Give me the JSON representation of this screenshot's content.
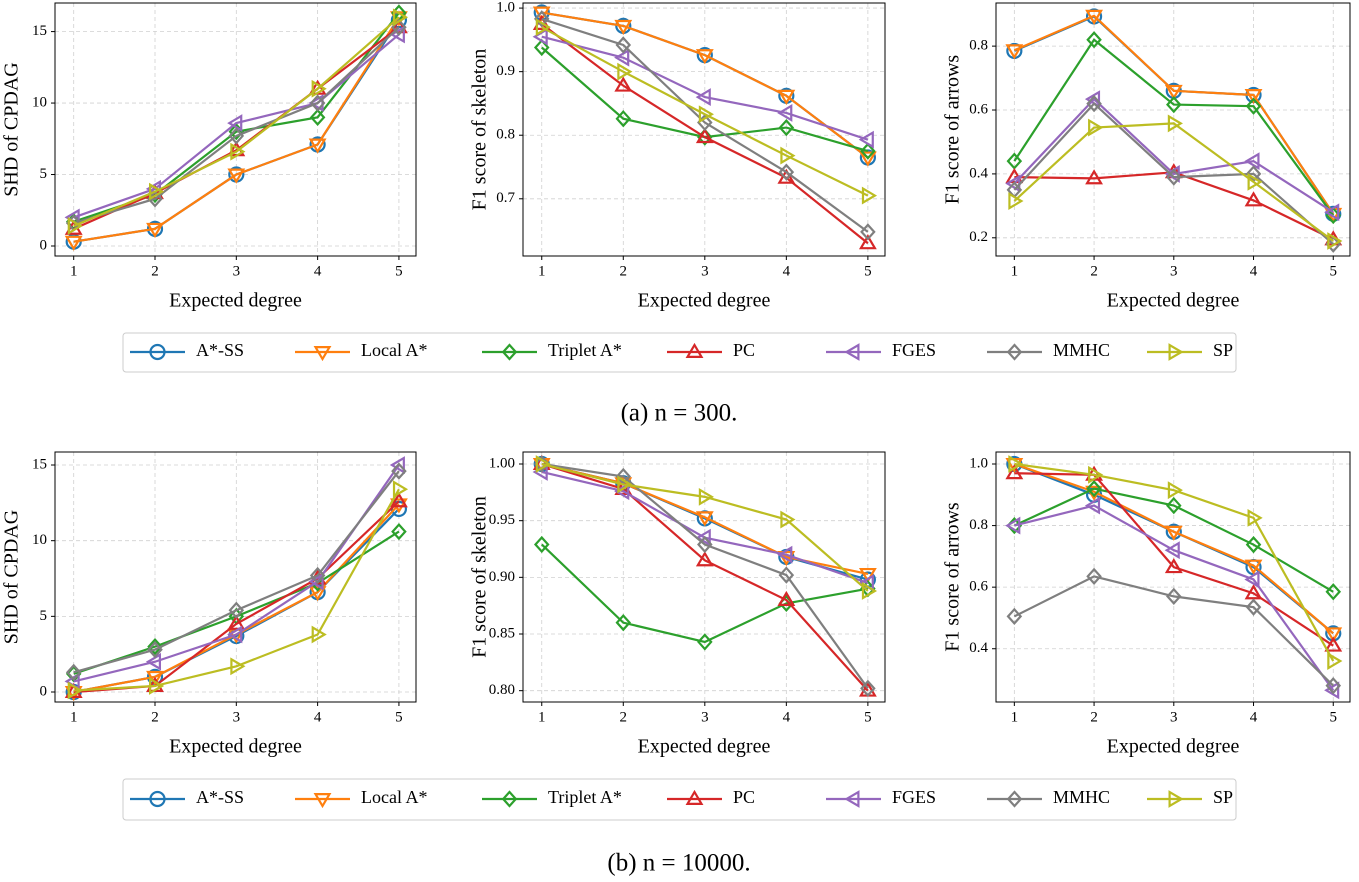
{
  "captions": [
    "(a) n = 300.",
    "(b) n = 10000."
  ],
  "chart_data": [
    {
      "type": "line",
      "xlabel": "Expected degree",
      "ylabel": "SHD of CPDAG",
      "x": [
        1,
        2,
        3,
        4,
        5
      ],
      "xlim": [
        0.77,
        5.21
      ],
      "xticks": [
        1,
        2,
        3,
        4,
        5
      ],
      "ylim": [
        -0.7,
        17.0
      ],
      "yticks": [
        0,
        5,
        10,
        15
      ],
      "grid": true,
      "series": [
        {
          "name": "A*-SS",
          "color": "#1f77b4",
          "marker": "o",
          "values": [
            0.3,
            1.2,
            5,
            7.1,
            15.8
          ]
        },
        {
          "name": "Local A*",
          "color": "#ff7f0e",
          "marker": "v",
          "values": [
            0.3,
            1.2,
            5,
            7.1,
            16
          ]
        },
        {
          "name": "Triplet A*",
          "color": "#2ca02c",
          "marker": "D",
          "values": [
            1.7,
            3.6,
            8,
            9,
            16.3
          ]
        },
        {
          "name": "PC",
          "color": "#d62728",
          "marker": "^",
          "values": [
            1.2,
            3.7,
            6.7,
            11,
            15.3
          ]
        },
        {
          "name": "FGES",
          "color": "#9467bd",
          "marker": "<",
          "values": [
            2,
            4,
            8.6,
            10,
            14.8
          ]
        },
        {
          "name": "MMHC",
          "color": "#7f7f7f",
          "marker": "D",
          "values": [
            1.6,
            3.3,
            7.7,
            10,
            15.3
          ]
        },
        {
          "name": "SP",
          "color": "#bcbd22",
          "marker": ">",
          "values": [
            1.4,
            3.8,
            6.6,
            11,
            16
          ]
        }
      ]
    },
    {
      "type": "line",
      "xlabel": "Expected degree",
      "ylabel": "F1 score of skeleton",
      "x": [
        1,
        2,
        3,
        4,
        5
      ],
      "xlim": [
        0.77,
        5.21
      ],
      "xticks": [
        1,
        2,
        3,
        4,
        5
      ],
      "ylim": [
        0.61,
        1.008
      ],
      "yticks": [
        0.7,
        0.8,
        0.9,
        {
          "value": 1,
          "label": "1.0"
        }
      ],
      "grid": true,
      "series": [
        {
          "name": "A*-SS",
          "color": "#1f77b4",
          "marker": "o",
          "values": [
            0.993,
            0.972,
            0.926,
            0.862,
            0.765
          ]
        },
        {
          "name": "Local A*",
          "color": "#ff7f0e",
          "marker": "v",
          "values": [
            0.993,
            0.972,
            0.926,
            0.862,
            0.765
          ]
        },
        {
          "name": "Triplet A*",
          "color": "#2ca02c",
          "marker": "D",
          "values": [
            0.938,
            0.826,
            0.797,
            0.812,
            0.775
          ]
        },
        {
          "name": "PC",
          "color": "#d62728",
          "marker": "^",
          "values": [
            0.975,
            0.878,
            0.797,
            0.733,
            0.63
          ]
        },
        {
          "name": "FGES",
          "color": "#9467bd",
          "marker": "<",
          "values": [
            0.955,
            0.922,
            0.86,
            0.835,
            0.793
          ]
        },
        {
          "name": "MMHC",
          "color": "#7f7f7f",
          "marker": "D",
          "values": [
            0.983,
            0.942,
            0.82,
            0.742,
            0.648
          ]
        },
        {
          "name": "SP",
          "color": "#bcbd22",
          "marker": ">",
          "values": [
            0.97,
            0.9,
            0.833,
            0.768,
            0.705
          ]
        }
      ]
    },
    {
      "type": "line",
      "xlabel": "Expected degree",
      "ylabel": "F1 score of arrows",
      "x": [
        1,
        2,
        3,
        4,
        5
      ],
      "xlim": [
        0.77,
        5.21
      ],
      "xticks": [
        1,
        2,
        3,
        4,
        5
      ],
      "ylim": [
        0.143,
        0.935
      ],
      "yticks": [
        0.2,
        0.4,
        0.6,
        0.8
      ],
      "grid": true,
      "series": [
        {
          "name": "A*-SS",
          "color": "#1f77b4",
          "marker": "o",
          "values": [
            0.785,
            0.893,
            0.66,
            0.647,
            0.275
          ]
        },
        {
          "name": "Local A*",
          "color": "#ff7f0e",
          "marker": "v",
          "values": [
            0.787,
            0.895,
            0.66,
            0.647,
            0.275
          ]
        },
        {
          "name": "Triplet A*",
          "color": "#2ca02c",
          "marker": "D",
          "values": [
            0.44,
            0.82,
            0.617,
            0.612,
            0.27
          ]
        },
        {
          "name": "PC",
          "color": "#d62728",
          "marker": "^",
          "values": [
            0.39,
            0.386,
            0.405,
            0.317,
            0.195
          ]
        },
        {
          "name": "FGES",
          "color": "#9467bd",
          "marker": "<",
          "values": [
            0.37,
            0.634,
            0.4,
            0.44,
            0.28
          ]
        },
        {
          "name": "MMHC",
          "color": "#7f7f7f",
          "marker": "D",
          "values": [
            0.35,
            0.62,
            0.39,
            0.4,
            0.18
          ]
        },
        {
          "name": "SP",
          "color": "#bcbd22",
          "marker": ">",
          "values": [
            0.315,
            0.545,
            0.558,
            0.375,
            0.19
          ]
        }
      ]
    },
    {
      "type": "line",
      "xlabel": "Expected degree",
      "ylabel": "SHD of CPDAG",
      "x": [
        1,
        2,
        3,
        4,
        5
      ],
      "xlim": [
        0.77,
        5.21
      ],
      "xticks": [
        1,
        2,
        3,
        4,
        5
      ],
      "ylim": [
        -0.66,
        15.86
      ],
      "yticks": [
        0,
        5,
        10,
        15
      ],
      "grid": true,
      "series": [
        {
          "name": "A*-SS",
          "color": "#1f77b4",
          "marker": "o",
          "values": [
            0,
            1,
            3.7,
            6.6,
            12.1
          ]
        },
        {
          "name": "Local A*",
          "color": "#ff7f0e",
          "marker": "v",
          "values": [
            0,
            1,
            3.8,
            6.6,
            12.4
          ]
        },
        {
          "name": "Triplet A*",
          "color": "#2ca02c",
          "marker": "D",
          "values": [
            1.2,
            3,
            5,
            7.2,
            10.6
          ]
        },
        {
          "name": "PC",
          "color": "#d62728",
          "marker": "^",
          "values": [
            0,
            0.4,
            4.5,
            7.5,
            12.6
          ]
        },
        {
          "name": "FGES",
          "color": "#9467bd",
          "marker": "<",
          "values": [
            0.7,
            2,
            3.8,
            7.3,
            15
          ]
        },
        {
          "name": "MMHC",
          "color": "#7f7f7f",
          "marker": "D",
          "values": [
            1.3,
            2.8,
            5.4,
            7.7,
            14.6
          ]
        },
        {
          "name": "SP",
          "color": "#bcbd22",
          "marker": ">",
          "values": [
            0.1,
            0.4,
            1.7,
            3.8,
            13.4
          ]
        }
      ]
    },
    {
      "type": "line",
      "xlabel": "Expected degree",
      "ylabel": "F1 score of skeleton",
      "x": [
        1,
        2,
        3,
        4,
        5
      ],
      "xlim": [
        0.77,
        5.21
      ],
      "xticks": [
        1,
        2,
        3,
        4,
        5
      ],
      "ylim": [
        0.79,
        1.0106
      ],
      "yticks": [
        {
          "value": 0.8,
          "label": "0.80"
        },
        {
          "value": 0.85,
          "label": "0.85"
        },
        {
          "value": 0.9,
          "label": "0.90"
        },
        {
          "value": 0.95,
          "label": "0.95"
        },
        {
          "value": 1,
          "label": "1.00"
        }
      ],
      "grid": true,
      "series": [
        {
          "name": "A*-SS",
          "color": "#1f77b4",
          "marker": "o",
          "values": [
            1.0,
            0.983,
            0.952,
            0.918,
            0.898
          ]
        },
        {
          "name": "Local A*",
          "color": "#ff7f0e",
          "marker": "v",
          "values": [
            1.0,
            0.983,
            0.953,
            0.918,
            0.903
          ]
        },
        {
          "name": "Triplet A*",
          "color": "#2ca02c",
          "marker": "D",
          "values": [
            0.929,
            0.86,
            0.843,
            0.877,
            0.89
          ]
        },
        {
          "name": "PC",
          "color": "#d62728",
          "marker": "^",
          "values": [
            1.0,
            0.978,
            0.915,
            0.88,
            0.8
          ]
        },
        {
          "name": "FGES",
          "color": "#9467bd",
          "marker": "<",
          "values": [
            0.993,
            0.976,
            0.935,
            0.92,
            0.895
          ]
        },
        {
          "name": "MMHC",
          "color": "#7f7f7f",
          "marker": "D",
          "values": [
            1.0,
            0.989,
            0.929,
            0.902,
            0.802
          ]
        },
        {
          "name": "SP",
          "color": "#bcbd22",
          "marker": ">",
          "values": [
            1.0,
            0.982,
            0.971,
            0.951,
            0.888
          ]
        }
      ]
    },
    {
      "type": "line",
      "xlabel": "Expected degree",
      "ylabel": "F1 score of arrows",
      "x": [
        1,
        2,
        3,
        4,
        5
      ],
      "xlim": [
        0.77,
        5.21
      ],
      "xticks": [
        1,
        2,
        3,
        4,
        5
      ],
      "ylim": [
        0.227,
        1.039
      ],
      "yticks": [
        0.4,
        0.6,
        0.8,
        {
          "value": 1,
          "label": "1.0"
        }
      ],
      "grid": true,
      "series": [
        {
          "name": "A*-SS",
          "color": "#1f77b4",
          "marker": "o",
          "values": [
            1.0,
            0.9,
            0.78,
            0.665,
            0.45
          ]
        },
        {
          "name": "Local A*",
          "color": "#ff7f0e",
          "marker": "v",
          "values": [
            1.0,
            0.91,
            0.78,
            0.67,
            0.45
          ]
        },
        {
          "name": "Triplet A*",
          "color": "#2ca02c",
          "marker": "D",
          "values": [
            0.8,
            0.92,
            0.865,
            0.738,
            0.585
          ]
        },
        {
          "name": "PC",
          "color": "#d62728",
          "marker": "^",
          "values": [
            0.97,
            0.965,
            0.665,
            0.58,
            0.41
          ]
        },
        {
          "name": "FGES",
          "color": "#9467bd",
          "marker": "<",
          "values": [
            0.8,
            0.865,
            0.72,
            0.625,
            0.265
          ]
        },
        {
          "name": "MMHC",
          "color": "#7f7f7f",
          "marker": "D",
          "values": [
            0.505,
            0.635,
            0.57,
            0.535,
            0.28
          ]
        },
        {
          "name": "SP",
          "color": "#bcbd22",
          "marker": ">",
          "values": [
            1.0,
            0.965,
            0.915,
            0.825,
            0.36
          ]
        }
      ]
    }
  ]
}
